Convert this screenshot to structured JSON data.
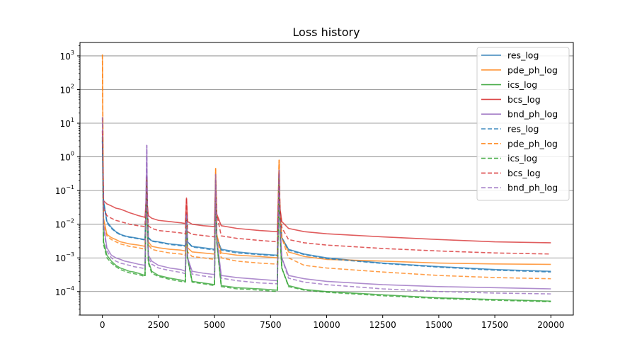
{
  "chart_data": {
    "type": "line",
    "title": "Loss history",
    "xlabel": "",
    "ylabel": "",
    "xlim": [
      -1000,
      21000
    ],
    "ylim": [
      2e-05,
      2500
    ],
    "yscale": "log",
    "grid": "y-major",
    "legend_placement": "top-right",
    "x_ticks": [
      0,
      2500,
      5000,
      7500,
      10000,
      12500,
      15000,
      17500,
      20000
    ],
    "x_tick_labels": [
      "0",
      "2500",
      "5000",
      "7500",
      "10000",
      "12500",
      "15000",
      "17500",
      "20000"
    ],
    "y_ticks": [
      0.0001,
      0.001,
      0.01,
      0.1,
      1,
      10,
      100,
      1000
    ],
    "y_tick_labels": [
      {
        "base": "10",
        "exp": "−4"
      },
      {
        "base": "10",
        "exp": "−3"
      },
      {
        "base": "10",
        "exp": "−2"
      },
      {
        "base": "10",
        "exp": "−1"
      },
      {
        "base": "10",
        "exp": "0"
      },
      {
        "base": "10",
        "exp": "1"
      },
      {
        "base": "10",
        "exp": "2"
      },
      {
        "base": "10",
        "exp": "3"
      }
    ],
    "x": [
      0,
      50,
      200,
      400,
      600,
      800,
      1000,
      1200,
      1400,
      1600,
      1900,
      1950,
      1980,
      2000,
      2050,
      2200,
      2500,
      3000,
      3500,
      3700,
      3750,
      3800,
      4000,
      4500,
      5000,
      5050,
      5100,
      5300,
      6000,
      7000,
      7800,
      7880,
      7920,
      8000,
      8300,
      9000,
      10000,
      12500,
      15000,
      17500,
      20000
    ],
    "series": [
      {
        "name": "res_log",
        "color": "#1f77b4",
        "style": "solid",
        "values": [
          3.0,
          0.05,
          0.012,
          0.008,
          0.006,
          0.005,
          0.0045,
          0.0042,
          0.004,
          0.0038,
          0.0035,
          0.05,
          0.25,
          0.03,
          0.004,
          0.0032,
          0.003,
          0.0026,
          0.0024,
          0.0023,
          0.02,
          0.003,
          0.0022,
          0.002,
          0.0018,
          0.2,
          0.004,
          0.0018,
          0.0015,
          0.0013,
          0.0012,
          0.3,
          0.02,
          0.004,
          0.0018,
          0.0013,
          0.001,
          0.0007,
          0.00055,
          0.00045,
          0.0004
        ]
      },
      {
        "name": "pde_ph_log",
        "color": "#ff7f0e",
        "style": "solid",
        "values": [
          1100,
          0.015,
          0.005,
          0.004,
          0.0035,
          0.003,
          0.0028,
          0.0026,
          0.0025,
          0.0024,
          0.0022,
          0.03,
          0.2,
          0.02,
          0.003,
          0.0022,
          0.002,
          0.0018,
          0.0017,
          0.0016,
          0.01,
          0.002,
          0.0015,
          0.0014,
          0.0013,
          0.45,
          0.005,
          0.0014,
          0.0012,
          0.0011,
          0.001,
          0.8,
          0.02,
          0.004,
          0.0015,
          0.0011,
          0.0009,
          0.0008,
          0.0007,
          0.00066,
          0.00064
        ]
      },
      {
        "name": "ics_log",
        "color": "#2ca02c",
        "style": "solid",
        "values": [
          4.0,
          0.003,
          0.0012,
          0.0008,
          0.0006,
          0.0005,
          0.00045,
          0.0004,
          0.00038,
          0.00035,
          0.0003,
          0.03,
          0.2,
          0.02,
          0.0008,
          0.0004,
          0.0003,
          0.00025,
          0.00022,
          0.0002,
          0.015,
          0.001,
          0.0002,
          0.00018,
          0.00016,
          0.2,
          0.003,
          0.00015,
          0.00013,
          0.00012,
          0.00011,
          0.3,
          0.005,
          0.0005,
          0.00015,
          0.000115,
          0.0001,
          8e-05,
          6.5e-05,
          5.8e-05,
          5.2e-05
        ]
      },
      {
        "name": "bcs_log",
        "color": "#d62728",
        "style": "solid",
        "values": [
          6.0,
          0.05,
          0.04,
          0.035,
          0.03,
          0.028,
          0.025,
          0.022,
          0.02,
          0.018,
          0.016,
          0.05,
          0.25,
          0.04,
          0.018,
          0.015,
          0.013,
          0.012,
          0.011,
          0.0105,
          0.06,
          0.012,
          0.01,
          0.009,
          0.0085,
          0.2,
          0.02,
          0.009,
          0.0075,
          0.0065,
          0.006,
          0.35,
          0.03,
          0.012,
          0.0075,
          0.006,
          0.0052,
          0.0042,
          0.0035,
          0.003,
          0.0028
        ]
      },
      {
        "name": "bnd_ph_log",
        "color": "#9467bd",
        "style": "solid",
        "values": [
          15,
          0.01,
          0.002,
          0.0012,
          0.001,
          0.0009,
          0.0008,
          0.00075,
          0.0007,
          0.00065,
          0.0006,
          0.1,
          2.2,
          0.05,
          0.0012,
          0.0008,
          0.0006,
          0.0005,
          0.00045,
          0.0004,
          0.02,
          0.001,
          0.0004,
          0.00035,
          0.00032,
          0.3,
          0.004,
          0.0003,
          0.00026,
          0.00023,
          0.00021,
          0.4,
          0.01,
          0.001,
          0.0003,
          0.00024,
          0.0002,
          0.00016,
          0.00014,
          0.00013,
          0.00012
        ]
      },
      {
        "name": "res_log",
        "color": "#1f77b4",
        "style": "dashed",
        "values": [
          3.0,
          0.05,
          0.011,
          0.0075,
          0.0058,
          0.0048,
          0.0044,
          0.0041,
          0.0039,
          0.0037,
          0.0034,
          0.05,
          0.25,
          0.03,
          0.0039,
          0.0031,
          0.0029,
          0.0025,
          0.0023,
          0.0022,
          0.02,
          0.003,
          0.0021,
          0.0019,
          0.0017,
          0.2,
          0.004,
          0.0017,
          0.0014,
          0.00125,
          0.00115,
          0.3,
          0.02,
          0.004,
          0.0017,
          0.00125,
          0.00095,
          0.00068,
          0.00053,
          0.00043,
          0.00038
        ]
      },
      {
        "name": "pde_ph_log",
        "color": "#ff7f0e",
        "style": "dashed",
        "values": [
          1100,
          0.012,
          0.0045,
          0.0035,
          0.003,
          0.0026,
          0.0024,
          0.0022,
          0.0021,
          0.002,
          0.0018,
          0.03,
          0.2,
          0.02,
          0.0025,
          0.0018,
          0.0016,
          0.0014,
          0.0013,
          0.0012,
          0.01,
          0.0015,
          0.0011,
          0.001,
          0.0009,
          0.45,
          0.005,
          0.001,
          0.0008,
          0.0007,
          0.00065,
          0.8,
          0.02,
          0.004,
          0.001,
          0.0006,
          0.0005,
          0.00038,
          0.0003,
          0.00026,
          0.00024
        ]
      },
      {
        "name": "ics_log",
        "color": "#2ca02c",
        "style": "dashed",
        "values": [
          4.0,
          0.0025,
          0.001,
          0.0007,
          0.00055,
          0.00045,
          0.0004,
          0.00036,
          0.00034,
          0.00032,
          0.00028,
          0.03,
          0.2,
          0.02,
          0.0007,
          0.00035,
          0.00028,
          0.00023,
          0.0002,
          0.00019,
          0.015,
          0.001,
          0.00019,
          0.00017,
          0.00015,
          0.2,
          0.003,
          0.00014,
          0.00012,
          0.00011,
          0.0001,
          0.3,
          0.005,
          0.0005,
          0.00014,
          0.00011,
          9.5e-05,
          7.5e-05,
          6.2e-05,
          5.5e-05,
          5e-05
        ]
      },
      {
        "name": "bcs_log",
        "color": "#d62728",
        "style": "dashed",
        "values": [
          6.0,
          0.03,
          0.018,
          0.015,
          0.013,
          0.012,
          0.011,
          0.01,
          0.0095,
          0.009,
          0.0085,
          0.05,
          0.25,
          0.04,
          0.009,
          0.0075,
          0.0065,
          0.006,
          0.0055,
          0.0052,
          0.06,
          0.006,
          0.005,
          0.0046,
          0.0042,
          0.2,
          0.02,
          0.0045,
          0.0038,
          0.0033,
          0.003,
          0.35,
          0.03,
          0.008,
          0.0035,
          0.0028,
          0.0024,
          0.0019,
          0.0016,
          0.0014,
          0.0013
        ]
      },
      {
        "name": "bnd_ph_log",
        "color": "#9467bd",
        "style": "dashed",
        "values": [
          15,
          0.008,
          0.0016,
          0.001,
          0.0008,
          0.0007,
          0.00065,
          0.0006,
          0.00055,
          0.00052,
          0.00048,
          0.1,
          2.2,
          0.05,
          0.001,
          0.00065,
          0.0005,
          0.00042,
          0.00037,
          0.00034,
          0.02,
          0.001,
          0.00033,
          0.00029,
          0.00026,
          0.3,
          0.004,
          0.00025,
          0.00021,
          0.00018,
          0.00017,
          0.4,
          0.01,
          0.001,
          0.00025,
          0.00019,
          0.00016,
          0.00012,
          0.0001,
          9e-05,
          8.5e-05
        ]
      }
    ]
  }
}
